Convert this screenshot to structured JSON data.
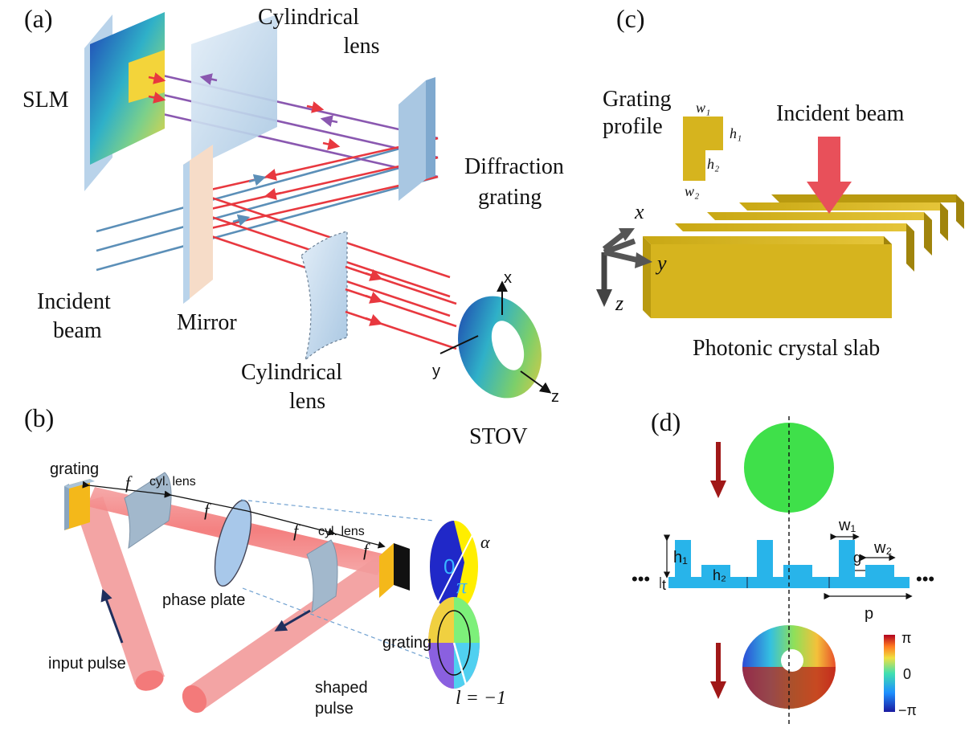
{
  "panels": {
    "a": {
      "letter": "(a)",
      "labels": {
        "slm": "SLM",
        "cyl_lens_top_1": "Cylindrical",
        "cyl_lens_top_2": "lens",
        "diffraction_1": "Diffraction",
        "diffraction_2": "grating",
        "incident_1": "Incident",
        "incident_2": "beam",
        "mirror": "Mirror",
        "cyl_lens_bottom_1": "Cylindrical",
        "cyl_lens_bottom_2": "lens",
        "stov": "STOV",
        "axis_x": "x",
        "axis_y": "y",
        "axis_z": "z"
      }
    },
    "b": {
      "letter": "(b)",
      "labels": {
        "grating_left": "grating",
        "cyl_lens_1": "cyl. lens",
        "cyl_lens_2": "cyl. lens",
        "f": "f",
        "phase_plate": "phase plate",
        "grating_right": "grating",
        "input_pulse": "input pulse",
        "shaped_pulse_1": "shaped",
        "shaped_pulse_2": "pulse",
        "phase_zero": "0",
        "phase_pi": "π",
        "alpha": "α",
        "l_value": "l = −1"
      }
    },
    "c": {
      "letter": "(c)",
      "labels": {
        "grating_profile_1": "Grating",
        "grating_profile_2": "profile",
        "w1": "w₁",
        "w2": "w₂",
        "h1": "h₁",
        "h2": "h₂",
        "incident_beam": "Incident beam",
        "axis_x": "x",
        "axis_y": "y",
        "axis_z": "z",
        "slab": "Photonic crystal slab"
      }
    },
    "d": {
      "letter": "(d)",
      "labels": {
        "w1": "w₁",
        "w2": "w₂",
        "g": "g",
        "h1": "h₁",
        "h2": "h₂",
        "t": "t",
        "p": "p",
        "ellipsis": "•••",
        "cb_top": "π",
        "cb_mid": "0",
        "cb_bottom": "−π"
      }
    }
  },
  "colors": {
    "red_beam": "#e8383f",
    "blue_beam": "#5b8fb8",
    "purple_beam": "#8a58b0",
    "glass": "#c6dcef",
    "slab_gold": "#d6b41e",
    "grating_cyan": "#28b4ea",
    "dark_red_arrow": "#a01818",
    "green_beam": "#3fe04a"
  }
}
